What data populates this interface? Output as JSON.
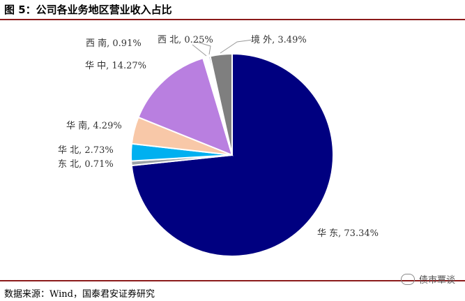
{
  "figure": {
    "title": "图 5：公司各业务地区营业收入占比",
    "source": "数据来源：Wind，国泰君安证券研究",
    "watermark": "债市覃谈"
  },
  "colors": {
    "rule": "#8B1A1A"
  },
  "chart_data": {
    "type": "pie",
    "start": "12 o'clock, clockwise",
    "slices": [
      {
        "name": "华 东",
        "value": 73.34,
        "label": "73.34%",
        "color": "#000080"
      },
      {
        "name": "东 北",
        "value": 0.71,
        "label": "0.71%",
        "color": "#9CA3A7"
      },
      {
        "name": "华 北",
        "value": 2.73,
        "label": "2.73%",
        "color": "#00B0F0"
      },
      {
        "name": "华 南",
        "value": 4.29,
        "label": "4.29%",
        "color": "#F8C8A8"
      },
      {
        "name": "华 中",
        "value": 14.27,
        "label": "14.27%",
        "color": "#B97FE0"
      },
      {
        "name": "西 南",
        "value": 0.91,
        "label": "0.91%",
        "color": "#FFFFFF"
      },
      {
        "name": "西 北",
        "value": 0.25,
        "label": "0.25%",
        "color": "#10235A"
      },
      {
        "name": "境 外",
        "value": 3.49,
        "label": "3.49%",
        "color": "#7F7F7F"
      }
    ]
  }
}
